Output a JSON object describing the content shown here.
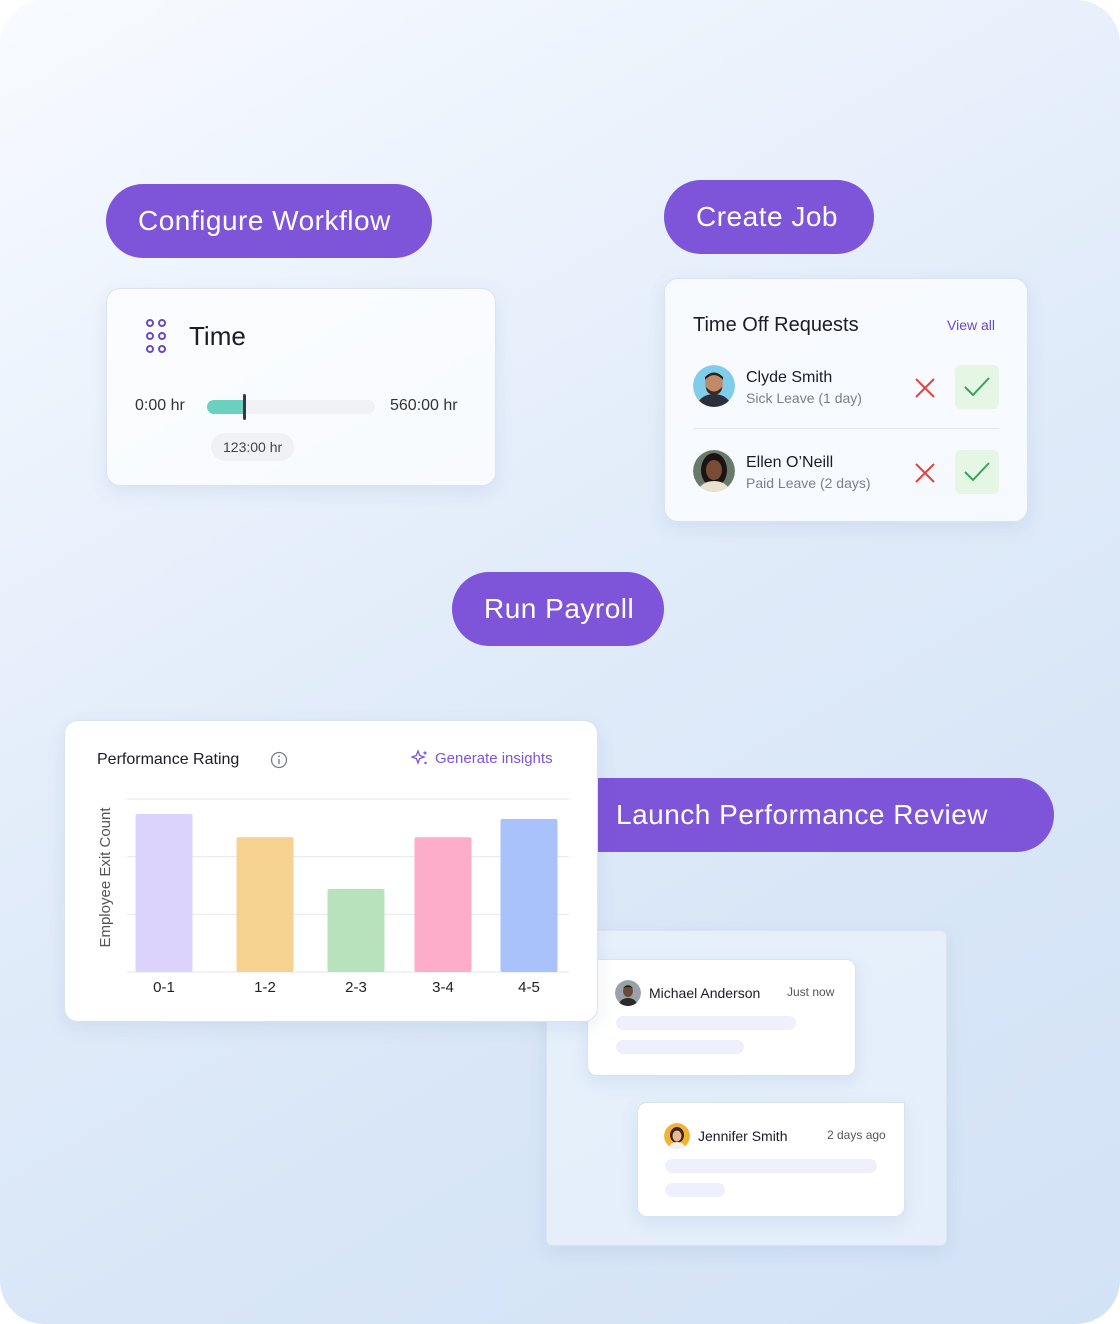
{
  "actions": {
    "configure_workflow": "Configure Workflow",
    "create_job": "Create Job",
    "run_payroll": "Run Payroll",
    "launch_review": "Launch Performance Review"
  },
  "time_card": {
    "title": "Time",
    "min": "0:00 hr",
    "max": "560:00 hr",
    "current": "123:00 hr",
    "progress": 0.22
  },
  "time_off": {
    "title": "Time Off Requests",
    "view_all": "View all",
    "requests": [
      {
        "name": "Clyde Smith",
        "detail": "Sick Leave (1 day)"
      },
      {
        "name": "Ellen O’Neill",
        "detail": "Paid Leave (2 days)"
      }
    ]
  },
  "performance": {
    "title": "Performance Rating",
    "insights": "Generate insights"
  },
  "chart_data": {
    "type": "bar",
    "categories": [
      "0-1",
      "1-2",
      "2-3",
      "3-4",
      "4-5"
    ],
    "values": [
      95,
      81,
      50,
      81,
      92
    ],
    "colors": [
      "#dcd3fc",
      "#f5d28f",
      "#b7e2bb",
      "#fdadc9",
      "#a9c2fb"
    ],
    "title": "Performance Rating",
    "xlabel": "",
    "ylabel": "Employee Exit Count",
    "ylim": [
      0,
      104
    ],
    "grid": true,
    "legend": "none"
  },
  "comments": [
    {
      "name": "Michael Anderson",
      "time": "Just now"
    },
    {
      "name": "Jennifer Smith",
      "time": "2 days ago"
    }
  ],
  "colors": {
    "accent": "#7e54d9",
    "reject": "#e0443e",
    "approve": "#35a455",
    "approve_bg": "#e6f6e4",
    "slider": "#6ad0bf"
  }
}
